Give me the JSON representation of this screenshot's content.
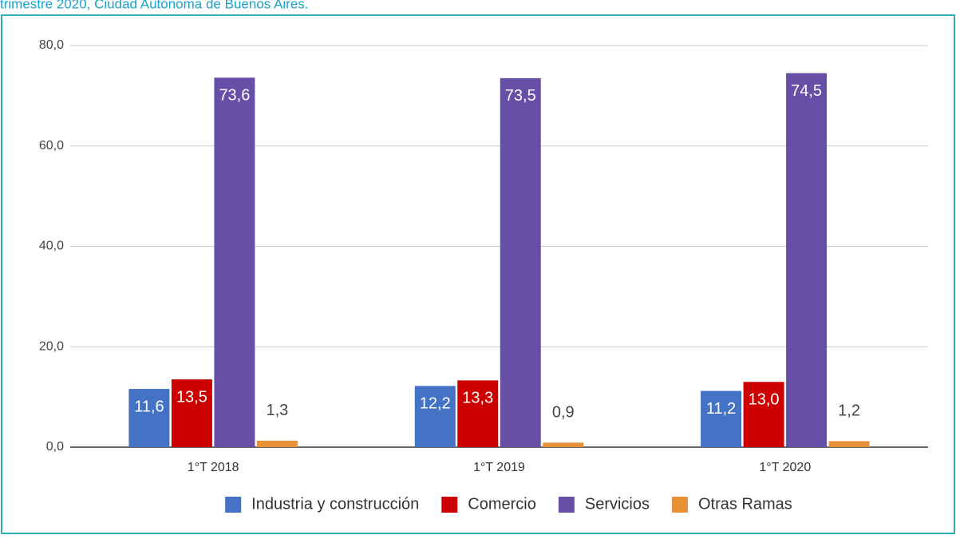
{
  "chart_data": {
    "type": "bar",
    "title": "trimestre 2020, Ciudad Autónoma de Buenos Aires.",
    "categories": [
      "1°T 2018",
      "1°T 2019",
      "1°T 2020"
    ],
    "series": [
      {
        "name": "Industria y construcción",
        "color": "#4472c4",
        "values": [
          11.6,
          12.2,
          11.2
        ],
        "value_labels": [
          "11,6",
          "12,2",
          "11,2"
        ]
      },
      {
        "name": "Comercio",
        "color": "#cc0000",
        "values": [
          13.5,
          13.3,
          13.0
        ],
        "value_labels": [
          "13,5",
          "13,3",
          "13,0"
        ]
      },
      {
        "name": "Servicios",
        "color": "#674ea7",
        "values": [
          73.6,
          73.5,
          74.5
        ],
        "value_labels": [
          "73,6",
          "73,5",
          "74,5"
        ]
      },
      {
        "name": "Otras Ramas",
        "color": "#e69138",
        "values": [
          1.3,
          0.9,
          1.2
        ],
        "value_labels": [
          "1,3",
          "0,9",
          "1,2"
        ]
      }
    ],
    "ylim": [
      0,
      80
    ],
    "yticks": [
      {
        "value": 0,
        "label": "0,0"
      },
      {
        "value": 20,
        "label": "20,0"
      },
      {
        "value": 40,
        "label": "40,0"
      },
      {
        "value": 60,
        "label": "60,0"
      },
      {
        "value": 80,
        "label": "80,0"
      }
    ],
    "grid": true,
    "legend": "bottom"
  }
}
